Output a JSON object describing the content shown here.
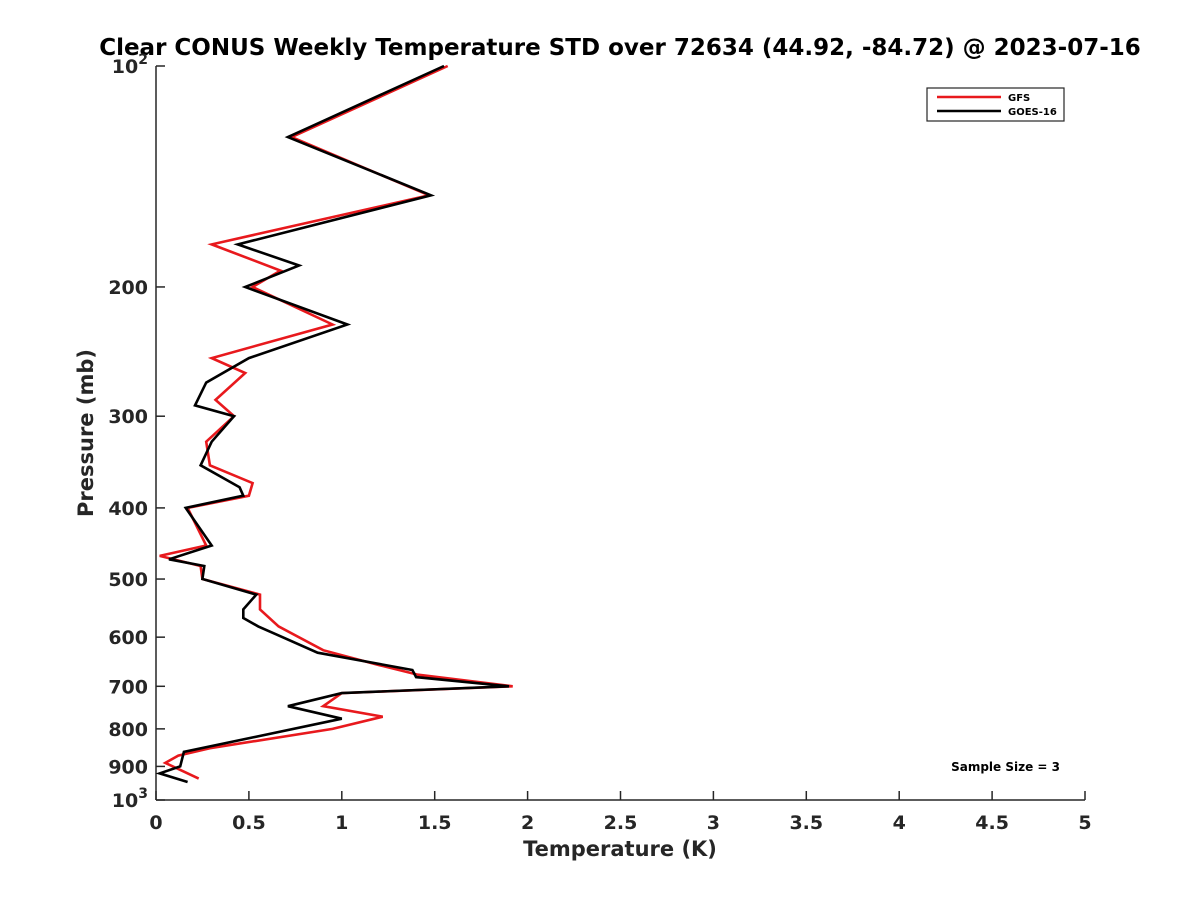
{
  "chart_data": {
    "type": "line",
    "title": "Clear CONUS Weekly Temperature STD over 72634 (44.92, -84.72) @ 2023-07-16",
    "xlabel": "Temperature (K)",
    "ylabel": "Pressure (mb)",
    "xlim": [
      0,
      5
    ],
    "ylim": [
      100,
      1000
    ],
    "y_scale": "log",
    "y_reversed": true,
    "x_ticks": [
      {
        "value": 0,
        "label": "0"
      },
      {
        "value": 0.5,
        "label": "0.5"
      },
      {
        "value": 1,
        "label": "1"
      },
      {
        "value": 1.5,
        "label": "1.5"
      },
      {
        "value": 2,
        "label": "2"
      },
      {
        "value": 2.5,
        "label": "2.5"
      },
      {
        "value": 3,
        "label": "3"
      },
      {
        "value": 3.5,
        "label": "3.5"
      },
      {
        "value": 4,
        "label": "4"
      },
      {
        "value": 4.5,
        "label": "4.5"
      },
      {
        "value": 5,
        "label": "5"
      }
    ],
    "y_ticks": [
      {
        "value": 100,
        "label": "10",
        "sup": "2"
      },
      {
        "value": 200,
        "label": "200",
        "sup": ""
      },
      {
        "value": 300,
        "label": "300",
        "sup": ""
      },
      {
        "value": 400,
        "label": "400",
        "sup": ""
      },
      {
        "value": 500,
        "label": "500",
        "sup": ""
      },
      {
        "value": 600,
        "label": "600",
        "sup": ""
      },
      {
        "value": 700,
        "label": "700",
        "sup": ""
      },
      {
        "value": 800,
        "label": "800",
        "sup": ""
      },
      {
        "value": 900,
        "label": "900",
        "sup": ""
      },
      {
        "value": 1000,
        "label": "10",
        "sup": "3"
      }
    ],
    "grid": false,
    "legend_position": "top-right",
    "series": [
      {
        "name": "GFS",
        "color": "#e8191d",
        "points": [
          [
            1.57,
            100
          ],
          [
            0.73,
            125
          ],
          [
            1.47,
            150
          ],
          [
            0.3,
            175
          ],
          [
            0.67,
            190
          ],
          [
            0.52,
            200
          ],
          [
            0.95,
            225
          ],
          [
            0.3,
            250
          ],
          [
            0.48,
            262
          ],
          [
            0.32,
            285
          ],
          [
            0.42,
            300
          ],
          [
            0.27,
            325
          ],
          [
            0.29,
            350
          ],
          [
            0.52,
            370
          ],
          [
            0.5,
            385
          ],
          [
            0.17,
            400
          ],
          [
            0.27,
            450
          ],
          [
            0.02,
            465
          ],
          [
            0.24,
            480
          ],
          [
            0.25,
            500
          ],
          [
            0.56,
            525
          ],
          [
            0.56,
            550
          ],
          [
            0.66,
            580
          ],
          [
            0.9,
            625
          ],
          [
            1.2,
            655
          ],
          [
            1.41,
            675
          ],
          [
            1.92,
            700
          ],
          [
            1.0,
            715
          ],
          [
            0.9,
            745
          ],
          [
            1.22,
            770
          ],
          [
            0.95,
            800
          ],
          [
            0.29,
            850
          ],
          [
            0.12,
            870
          ],
          [
            0.05,
            890
          ],
          [
            0.23,
            935
          ]
        ]
      },
      {
        "name": "GOES-16",
        "color": "#000000",
        "points": [
          [
            1.55,
            100
          ],
          [
            0.71,
            125
          ],
          [
            1.48,
            150
          ],
          [
            0.44,
            175
          ],
          [
            0.77,
            187
          ],
          [
            0.48,
            200
          ],
          [
            1.03,
            225
          ],
          [
            0.5,
            250
          ],
          [
            0.27,
            270
          ],
          [
            0.21,
            290
          ],
          [
            0.42,
            300
          ],
          [
            0.3,
            325
          ],
          [
            0.24,
            350
          ],
          [
            0.45,
            375
          ],
          [
            0.47,
            385
          ],
          [
            0.16,
            400
          ],
          [
            0.3,
            450
          ],
          [
            0.07,
            470
          ],
          [
            0.26,
            480
          ],
          [
            0.25,
            500
          ],
          [
            0.54,
            525
          ],
          [
            0.47,
            550
          ],
          [
            0.47,
            565
          ],
          [
            0.55,
            580
          ],
          [
            0.87,
            630
          ],
          [
            1.38,
            665
          ],
          [
            1.4,
            680
          ],
          [
            1.9,
            700
          ],
          [
            1.0,
            715
          ],
          [
            0.71,
            745
          ],
          [
            1.0,
            775
          ],
          [
            0.15,
            860
          ],
          [
            0.13,
            900
          ],
          [
            0.02,
            920
          ],
          [
            0.17,
            945
          ]
        ]
      }
    ],
    "annotations": [
      {
        "text": "Sample Size = 3"
      }
    ]
  }
}
